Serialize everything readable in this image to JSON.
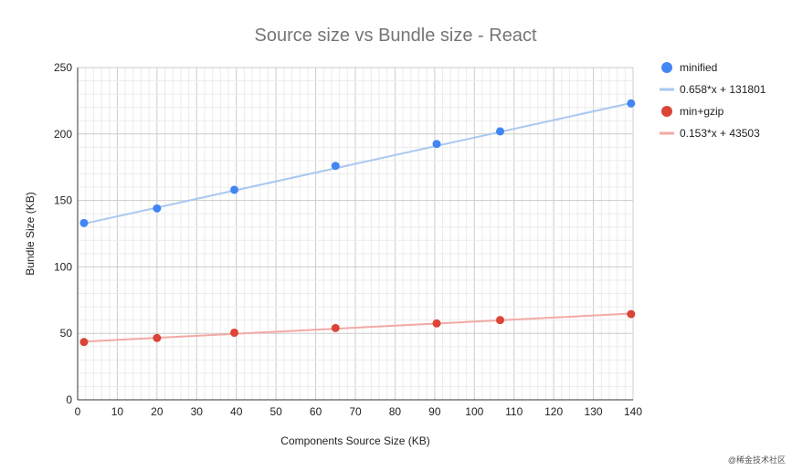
{
  "watermark": "@稀金技术社区",
  "chart_data": {
    "type": "scatter",
    "title": "Source size vs Bundle size - React",
    "xlabel": "Components Source Size (KB)",
    "ylabel": "Bundle Size (KB)",
    "xlim": [
      0,
      140
    ],
    "ylim": [
      0,
      250
    ],
    "xticks": [
      0,
      10,
      20,
      30,
      40,
      50,
      60,
      70,
      80,
      90,
      100,
      110,
      120,
      130,
      140
    ],
    "yticks": [
      0,
      50,
      100,
      150,
      200,
      250
    ],
    "grid": true,
    "minor_grid": true,
    "legend_position": "right",
    "series": [
      {
        "name": "minified",
        "color": "#4285F4",
        "marker": "circle",
        "points": [
          [
            1.6,
            133
          ],
          [
            20,
            144
          ],
          [
            39.5,
            158
          ],
          [
            65,
            176
          ],
          [
            90.5,
            192.5
          ],
          [
            106.5,
            202
          ],
          [
            139.5,
            223
          ]
        ]
      },
      {
        "name": "min+gzip",
        "color": "#DB4437",
        "marker": "circle",
        "points": [
          [
            1.6,
            43.5
          ],
          [
            20,
            46.5
          ],
          [
            39.5,
            50.5
          ],
          [
            65,
            54
          ],
          [
            90.5,
            57.5
          ],
          [
            106.5,
            60
          ],
          [
            139.5,
            64.5
          ]
        ]
      }
    ],
    "trendlines": [
      {
        "name": "0.658*x + 131801",
        "color": "#A9C8F0",
        "of_series": "minified",
        "from": [
          1.6,
          132.5
        ],
        "to": [
          139.5,
          223.3
        ]
      },
      {
        "name": "0.153*x + 43503",
        "color": "#F2AAA4",
        "of_series": "min+gzip",
        "from": [
          1.6,
          43.8
        ],
        "to": [
          139.5,
          64.9
        ]
      }
    ],
    "legend": [
      {
        "label": "minified",
        "kind": "dot",
        "color": "#4285F4"
      },
      {
        "label": "0.658*x + 131801",
        "kind": "line",
        "color": "#A9C8F0"
      },
      {
        "label": "min+gzip",
        "kind": "dot",
        "color": "#DB4437"
      },
      {
        "label": "0.153*x + 43503",
        "kind": "line",
        "color": "#F2AAA4"
      }
    ]
  }
}
